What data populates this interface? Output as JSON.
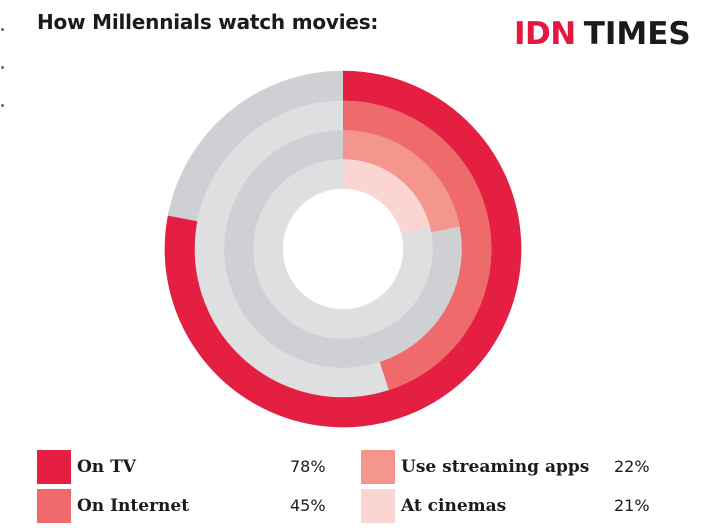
{
  "title": "How Millennials watch movies:",
  "logo": {
    "brand": "IDN",
    "word": "TIMES"
  },
  "chart_data": {
    "type": "radial-donut",
    "title": "How Millennials watch movies:",
    "track_colors": [
      "#cfd0d3",
      "#dedfe1"
    ],
    "series": [
      {
        "name": "On TV",
        "value": 78,
        "unit": "%",
        "color": "#e51f41"
      },
      {
        "name": "On Internet",
        "value": 45,
        "unit": "%",
        "color": "#ef6a6a"
      },
      {
        "name": "Use streaming apps",
        "value": 22,
        "unit": "%",
        "color": "#f4968e"
      },
      {
        "name": "At cinemas",
        "value": 21,
        "unit": "%",
        "color": "#fbd5d1"
      }
    ]
  },
  "legend": [
    {
      "label": "On TV",
      "value": "78%",
      "color": "#e51f41"
    },
    {
      "label": "On Internet",
      "value": "45%",
      "color": "#ef6a6a"
    },
    {
      "label": "Use streaming apps",
      "value": "22%",
      "color": "#f4968e"
    },
    {
      "label": "At cinemas",
      "value": "21%",
      "color": "#fbd5d1"
    }
  ]
}
